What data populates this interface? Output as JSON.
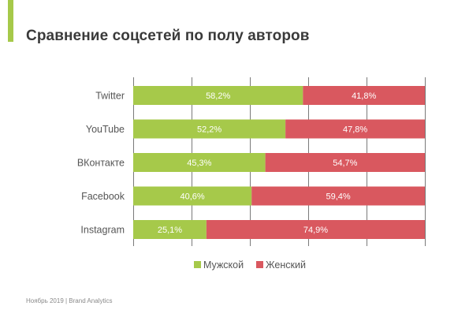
{
  "title": "Сравнение соцсетей по полу авторов",
  "footer": "Ноябрь 2019 | Brand Analytics",
  "colors": {
    "accent": "#a6c94a",
    "male": "#a6c94a",
    "female": "#d9585f",
    "grid": "#7a7a7a"
  },
  "chart_data": {
    "type": "bar",
    "orientation": "horizontal",
    "stacked": true,
    "categories": [
      "Twitter",
      "YouTube",
      "ВКонтакте",
      "Facebook",
      "Instagram"
    ],
    "series": [
      {
        "name": "Мужской",
        "values": [
          58.2,
          52.2,
          45.3,
          40.6,
          25.1
        ],
        "labels": [
          "58,2%",
          "52,2%",
          "45,3%",
          "40,6%",
          "25,1%"
        ]
      },
      {
        "name": "Женский",
        "values": [
          41.8,
          47.8,
          54.7,
          59.4,
          74.9
        ],
        "labels": [
          "41,8%",
          "47,8%",
          "54,7%",
          "59,4%",
          "74,9%"
        ]
      }
    ],
    "xlim": [
      0,
      100
    ],
    "grid": true,
    "legend": "bottom"
  }
}
